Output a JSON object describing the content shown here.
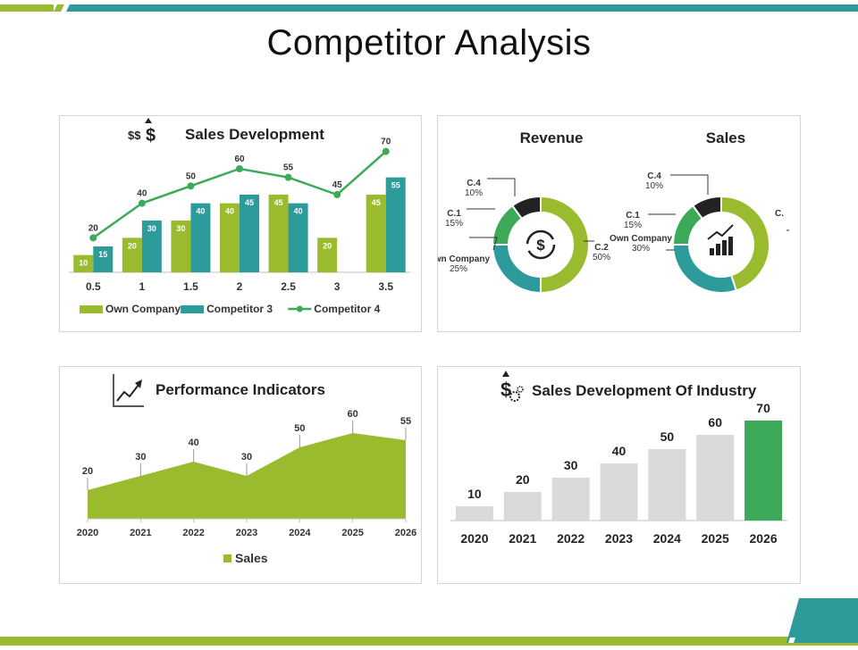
{
  "page": {
    "title": "Competitor Analysis"
  },
  "colors": {
    "olive": "#9BBB2F",
    "teal": "#2E9B9B",
    "green": "#3DAA5A",
    "dark": "#222222",
    "gray": "#D9D9D9"
  },
  "chart_data": [
    {
      "type": "bar",
      "title": "Sales Development",
      "categories": [
        "0.5",
        "1",
        "1.5",
        "2",
        "2.5",
        "3",
        "3.5"
      ],
      "series": [
        {
          "name": "Own Company",
          "type": "bar",
          "values": [
            10,
            20,
            30,
            40,
            45,
            20,
            45
          ]
        },
        {
          "name": "Competitor 3",
          "type": "bar",
          "values": [
            15,
            30,
            40,
            45,
            40,
            null,
            55
          ]
        },
        {
          "name": "Competitor 4",
          "type": "line",
          "values": [
            20,
            40,
            50,
            60,
            55,
            45,
            70
          ]
        }
      ],
      "legend": "bottom",
      "icon": "dollar-icon"
    },
    {
      "type": "pie",
      "title": "Revenue",
      "slices": [
        {
          "label": "C.2",
          "value": 50,
          "display": "50%"
        },
        {
          "label": "Own Company",
          "value": 25,
          "display": "25%"
        },
        {
          "label": "C.1",
          "value": 15,
          "display": "15%"
        },
        {
          "label": "C.4",
          "value": 10,
          "display": "10%"
        }
      ],
      "icon": "dollar-refresh-icon"
    },
    {
      "type": "pie",
      "title": "Sales",
      "slices": [
        {
          "label": "C.",
          "value": 45,
          "display": ""
        },
        {
          "label": "Own Company",
          "value": 30,
          "display": "30%"
        },
        {
          "label": "C.1",
          "value": 15,
          "display": "15%"
        },
        {
          "label": "C.4",
          "value": 10,
          "display": "10%"
        }
      ],
      "icon": "growth-chart-icon"
    },
    {
      "type": "area",
      "title": "Performance Indicators",
      "categories": [
        "2020",
        "2021",
        "2022",
        "2023",
        "2024",
        "2025",
        "2026"
      ],
      "series": [
        {
          "name": "Sales",
          "values": [
            20,
            30,
            40,
            30,
            50,
            60,
            55
          ]
        }
      ],
      "legend": "bottom",
      "icon": "trend-icon"
    },
    {
      "type": "bar",
      "title": "Sales Development Of Industry",
      "categories": [
        "2020",
        "2021",
        "2022",
        "2023",
        "2024",
        "2025",
        "2026"
      ],
      "values": [
        10,
        20,
        30,
        40,
        50,
        60,
        70
      ],
      "highlight": "2026",
      "icon": "dollar-gear-icon"
    }
  ]
}
